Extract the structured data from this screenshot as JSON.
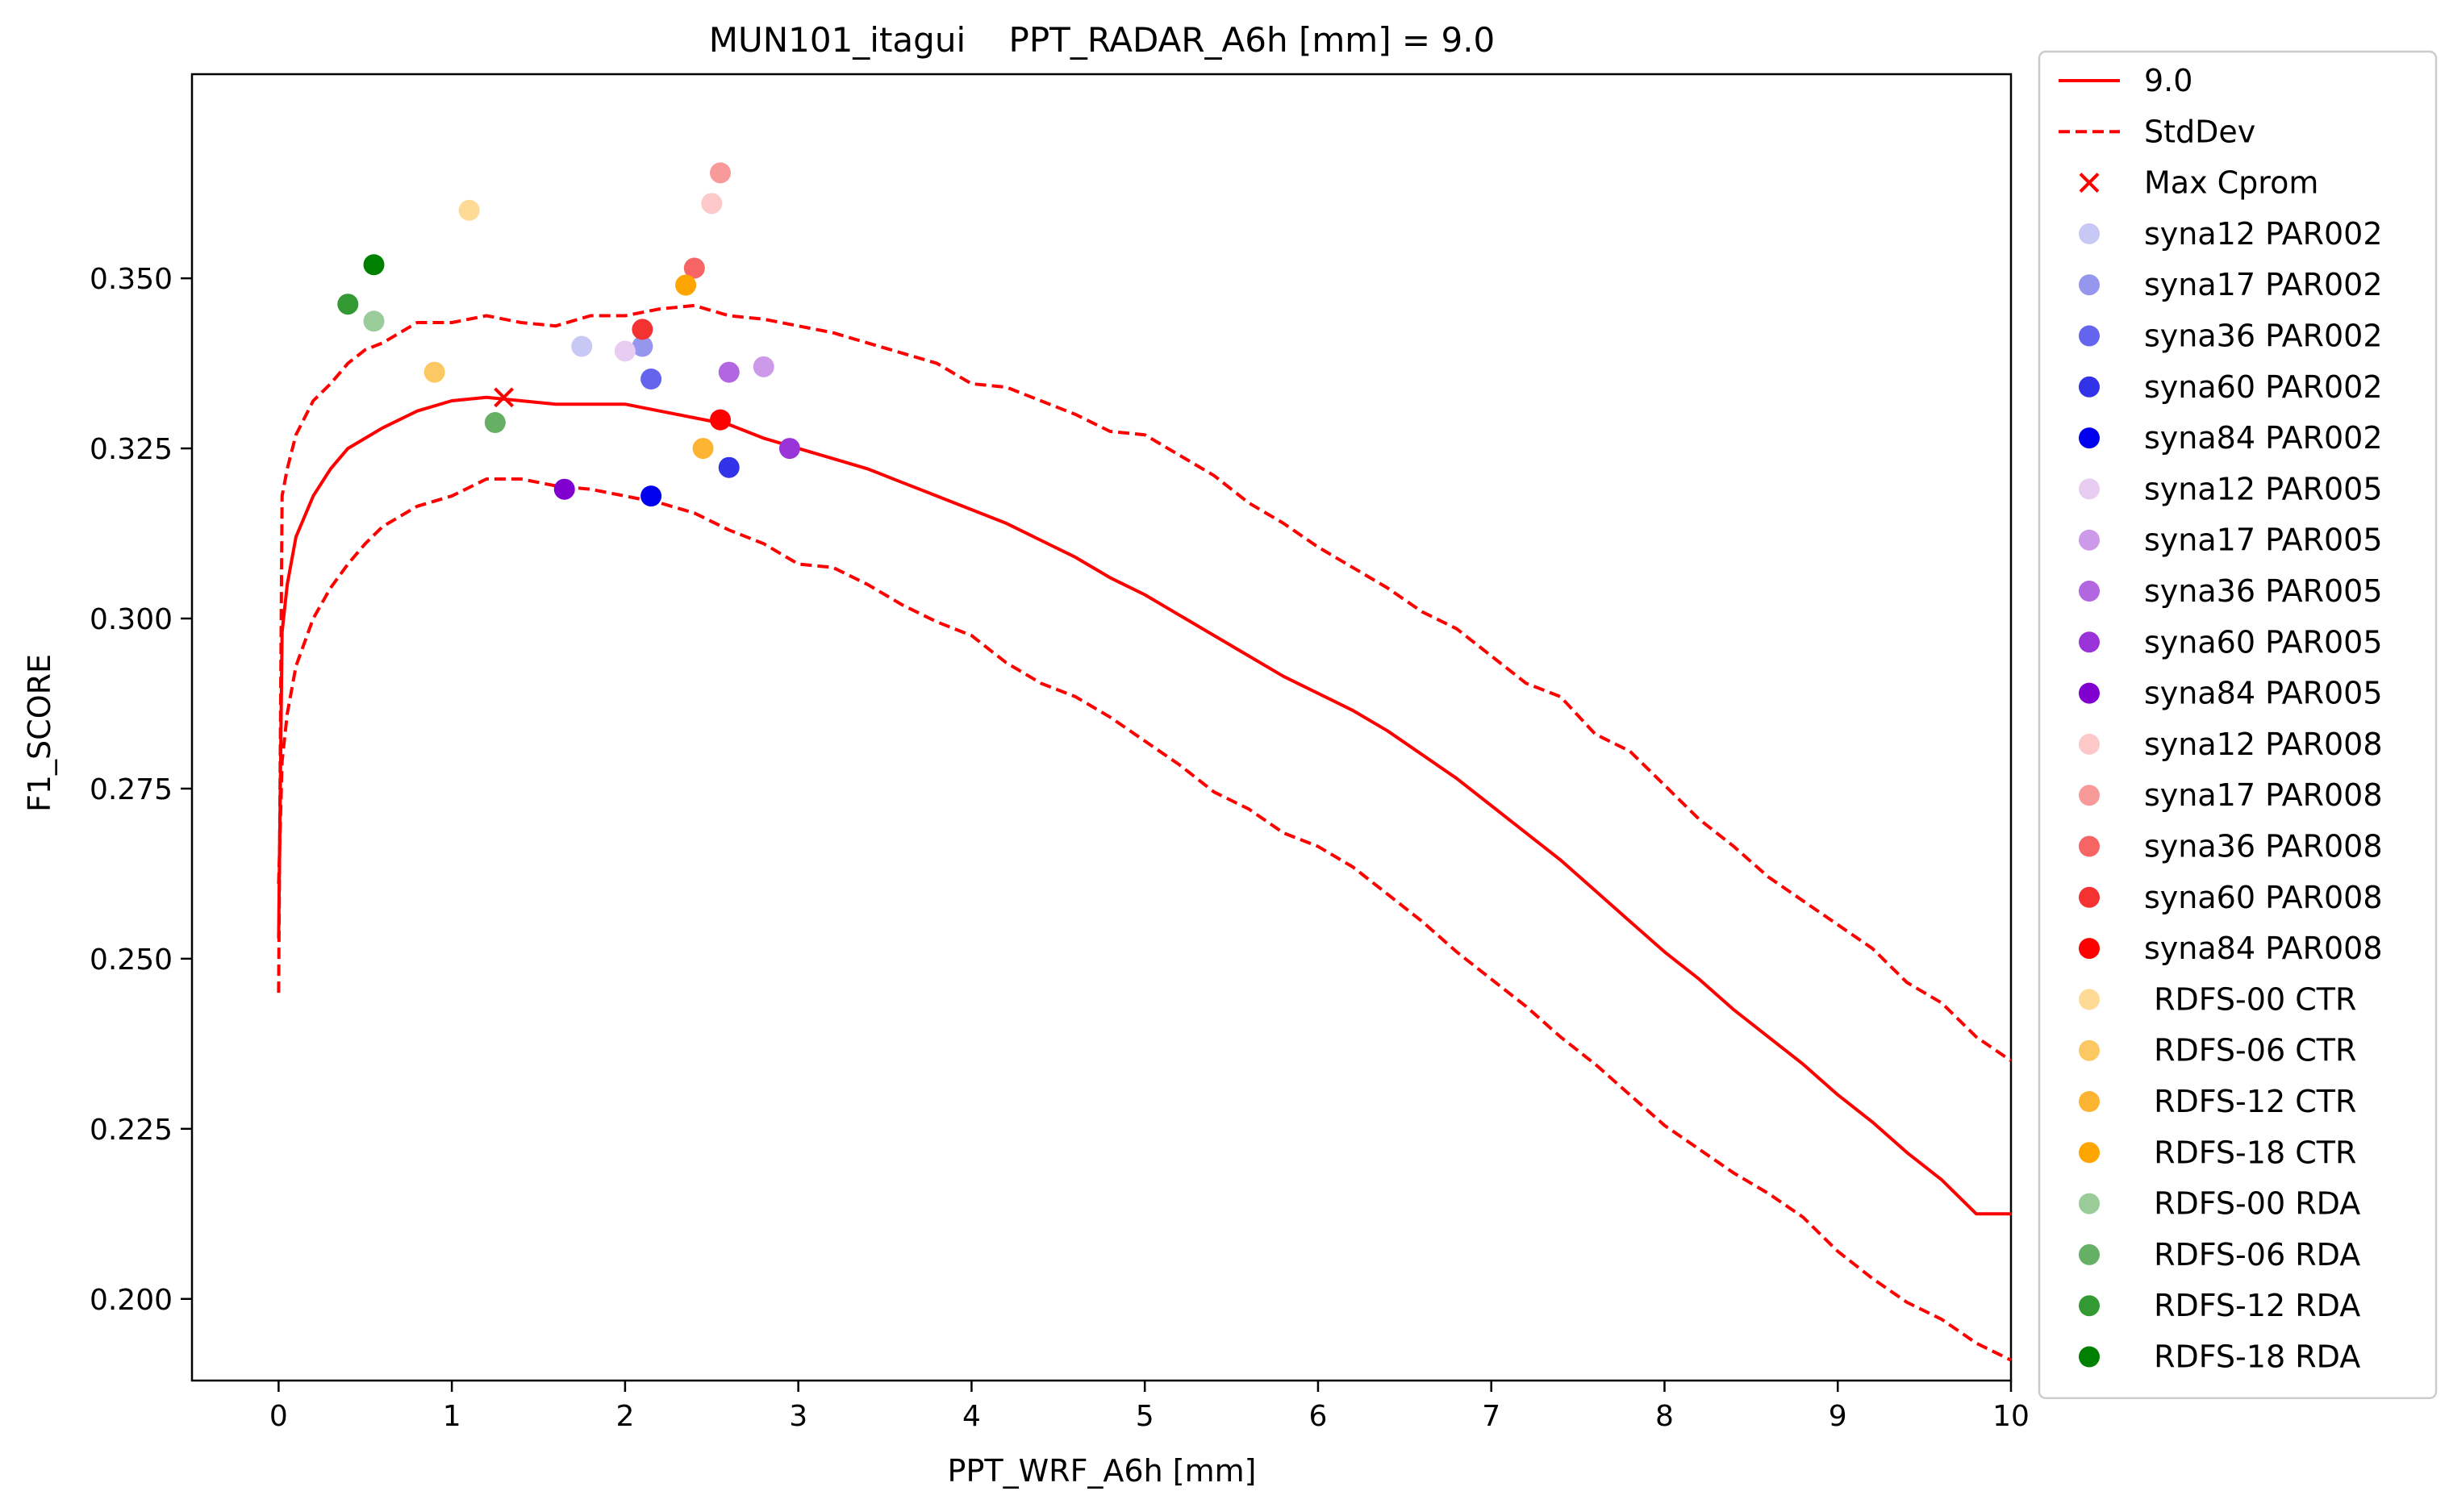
{
  "chart_data": {
    "type": "line",
    "title": "MUN101_itagui    PPT_RADAR_A6h [mm] = 9.0",
    "xlabel": "PPT_WRF_A6h [mm]",
    "ylabel": "F1_SCORE",
    "xlim": [
      -0.5,
      10
    ],
    "ylim": [
      0.188,
      0.38
    ],
    "x_ticks": [
      0,
      1,
      2,
      3,
      4,
      5,
      6,
      7,
      8,
      9,
      10
    ],
    "x_tick_labels": [
      "0",
      "1",
      "2",
      "3",
      "4",
      "5",
      "6",
      "7",
      "8",
      "9",
      "10"
    ],
    "y_ticks": [
      0.2,
      0.225,
      0.25,
      0.275,
      0.3,
      0.325,
      0.35
    ],
    "y_tick_labels": [
      "0.200",
      "0.225",
      "0.250",
      "0.275",
      "0.300",
      "0.325",
      "0.350"
    ],
    "grid": false,
    "legend_position": "outside-right",
    "series": [
      {
        "name": "9.0",
        "style": "solid",
        "color": "#ff0000",
        "x": [
          0,
          0.02,
          0.05,
          0.1,
          0.2,
          0.3,
          0.4,
          0.5,
          0.6,
          0.8,
          1.0,
          1.2,
          1.4,
          1.6,
          1.8,
          2.0,
          2.2,
          2.4,
          2.6,
          2.8,
          3.0,
          3.2,
          3.4,
          3.6,
          3.8,
          4.0,
          4.2,
          4.4,
          4.6,
          4.8,
          5.0,
          5.2,
          5.4,
          5.6,
          5.8,
          6.0,
          6.2,
          6.4,
          6.6,
          6.8,
          7.0,
          7.2,
          7.4,
          7.6,
          7.8,
          8.0,
          8.2,
          8.4,
          8.6,
          8.8,
          9.0,
          9.2,
          9.4,
          9.6,
          9.8,
          10.0
        ],
        "values": [
          0.253,
          0.298,
          0.305,
          0.312,
          0.318,
          0.322,
          0.325,
          0.3265,
          0.328,
          0.3305,
          0.332,
          0.3325,
          0.332,
          0.3315,
          0.3315,
          0.3315,
          0.3305,
          0.3295,
          0.3285,
          0.3265,
          0.325,
          0.3235,
          0.322,
          0.32,
          0.318,
          0.316,
          0.314,
          0.3115,
          0.309,
          0.306,
          0.3035,
          0.3005,
          0.2975,
          0.2945,
          0.2915,
          0.289,
          0.2865,
          0.2835,
          0.28,
          0.2765,
          0.2725,
          0.2685,
          0.2645,
          0.26,
          0.2555,
          0.251,
          0.247,
          0.2425,
          0.2385,
          0.2345,
          0.23,
          0.226,
          0.2215,
          0.2175,
          0.2125,
          0.2125
        ]
      },
      {
        "name": "StdDev",
        "style": "dashed",
        "color": "#ff0000",
        "x": [
          0,
          0.02,
          0.05,
          0.1,
          0.2,
          0.3,
          0.4,
          0.5,
          0.6,
          0.8,
          1.0,
          1.2,
          1.4,
          1.6,
          1.8,
          2.0,
          2.2,
          2.4,
          2.6,
          2.8,
          3.0,
          3.2,
          3.4,
          3.6,
          3.8,
          4.0,
          4.2,
          4.4,
          4.6,
          4.8,
          5.0,
          5.2,
          5.4,
          5.6,
          5.8,
          6.0,
          6.2,
          6.4,
          6.6,
          6.8,
          7.0,
          7.2,
          7.4,
          7.6,
          7.8,
          8.0,
          8.2,
          8.4,
          8.6,
          8.8,
          9.0,
          9.2,
          9.4,
          9.6,
          9.8,
          10.0
        ],
        "values": [
          0.245,
          0.318,
          0.322,
          0.327,
          0.332,
          0.3345,
          0.3375,
          0.3395,
          0.3405,
          0.3435,
          0.3435,
          0.3445,
          0.3435,
          0.343,
          0.3445,
          0.3445,
          0.3455,
          0.346,
          0.3445,
          0.344,
          0.343,
          0.342,
          0.3405,
          0.339,
          0.3375,
          0.3345,
          0.334,
          0.332,
          0.33,
          0.3275,
          0.327,
          0.324,
          0.321,
          0.317,
          0.314,
          0.3105,
          0.3075,
          0.3045,
          0.301,
          0.2985,
          0.2945,
          0.2905,
          0.2885,
          0.283,
          0.2805,
          0.2755,
          0.2705,
          0.2665,
          0.262,
          0.2585,
          0.255,
          0.2515,
          0.2465,
          0.2435,
          0.2385,
          0.235
        ]
      },
      {
        "name": "StdDev lower",
        "style": "dashed",
        "color": "#ff0000",
        "x": [
          0,
          0.02,
          0.05,
          0.1,
          0.2,
          0.3,
          0.4,
          0.5,
          0.6,
          0.8,
          1.0,
          1.2,
          1.4,
          1.6,
          1.8,
          2.0,
          2.2,
          2.4,
          2.6,
          2.8,
          3.0,
          3.2,
          3.4,
          3.6,
          3.8,
          4.0,
          4.2,
          4.4,
          4.6,
          4.8,
          5.0,
          5.2,
          5.4,
          5.6,
          5.8,
          6.0,
          6.2,
          6.4,
          6.6,
          6.8,
          7.0,
          7.2,
          7.4,
          7.6,
          7.8,
          8.0,
          8.2,
          8.4,
          8.6,
          8.8,
          9.0,
          9.2,
          9.4,
          9.6,
          9.8,
          10.0
        ],
        "values": [
          0.261,
          0.279,
          0.286,
          0.293,
          0.3,
          0.3045,
          0.308,
          0.311,
          0.3135,
          0.3165,
          0.318,
          0.3205,
          0.3205,
          0.3195,
          0.319,
          0.318,
          0.317,
          0.3155,
          0.313,
          0.311,
          0.308,
          0.3075,
          0.305,
          0.302,
          0.2995,
          0.2975,
          0.2935,
          0.2905,
          0.2885,
          0.2855,
          0.282,
          0.2785,
          0.2745,
          0.272,
          0.2685,
          0.2665,
          0.2635,
          0.2595,
          0.2555,
          0.251,
          0.247,
          0.243,
          0.2385,
          0.2345,
          0.23,
          0.2255,
          0.222,
          0.2185,
          0.2155,
          0.212,
          0.207,
          0.203,
          0.1995,
          0.197,
          0.1935,
          0.191
        ]
      }
    ],
    "max_point": {
      "name": "Max Cprom",
      "x": 1.3,
      "y": 0.3325,
      "color": "#ff0000",
      "marker": "x"
    },
    "points": [
      {
        "name": "syna12 PAR002",
        "x": 1.75,
        "y": 0.34,
        "color": "#c8c8f5"
      },
      {
        "name": "syna17 PAR002",
        "x": 2.1,
        "y": 0.34,
        "color": "#9696ee"
      },
      {
        "name": "syna36 PAR002",
        "x": 2.15,
        "y": 0.3352,
        "color": "#6464ee"
      },
      {
        "name": "syna60 PAR002",
        "x": 2.6,
        "y": 0.3222,
        "color": "#3232e8"
      },
      {
        "name": "syna84 PAR002",
        "x": 2.15,
        "y": 0.318,
        "color": "#0000ee"
      },
      {
        "name": "syna12 PAR005",
        "x": 2.0,
        "y": 0.3393,
        "color": "#e8ccf2"
      },
      {
        "name": "syna17 PAR005",
        "x": 2.8,
        "y": 0.337,
        "color": "#cc9ae8"
      },
      {
        "name": "syna36 PAR005",
        "x": 2.6,
        "y": 0.3362,
        "color": "#b266e0"
      },
      {
        "name": "syna60 PAR005",
        "x": 2.95,
        "y": 0.325,
        "color": "#9a33d8"
      },
      {
        "name": "syna84 PAR005",
        "x": 1.65,
        "y": 0.319,
        "color": "#8000d0"
      },
      {
        "name": "syna12 PAR008",
        "x": 2.5,
        "y": 0.361,
        "color": "#fcc8c8"
      },
      {
        "name": "syna17 PAR008",
        "x": 2.55,
        "y": 0.3655,
        "color": "#f99a9a"
      },
      {
        "name": "syna36 PAR008",
        "x": 2.4,
        "y": 0.3515,
        "color": "#f76464"
      },
      {
        "name": "syna60 PAR008",
        "x": 2.1,
        "y": 0.3425,
        "color": "#f53232"
      },
      {
        "name": "syna84 PAR008",
        "x": 2.55,
        "y": 0.3292,
        "color": "#ff0000"
      },
      {
        "name": "RDFS-00 CTR",
        "x": 1.1,
        "y": 0.36,
        "color": "#fddb96"
      },
      {
        "name": "RDFS-06 CTR",
        "x": 0.9,
        "y": 0.3362,
        "color": "#fcc864"
      },
      {
        "name": "RDFS-12 CTR",
        "x": 2.45,
        "y": 0.325,
        "color": "#fcb432"
      },
      {
        "name": "RDFS-18 CTR",
        "x": 2.35,
        "y": 0.349,
        "color": "#ffa500"
      },
      {
        "name": "RDFS-00 RDA",
        "x": 0.55,
        "y": 0.3437,
        "color": "#99cc99"
      },
      {
        "name": "RDFS-06 RDA",
        "x": 1.25,
        "y": 0.3288,
        "color": "#66b066"
      },
      {
        "name": "RDFS-12 RDA",
        "x": 0.4,
        "y": 0.3462,
        "color": "#339933"
      },
      {
        "name": "RDFS-18 RDA",
        "x": 0.55,
        "y": 0.352,
        "color": "#008000"
      }
    ],
    "legend": [
      {
        "label": "9.0",
        "type": "solid-line",
        "color": "#ff0000"
      },
      {
        "label": "StdDev",
        "type": "dashed-line",
        "color": "#ff0000"
      },
      {
        "label": "Max Cprom",
        "type": "x-marker",
        "color": "#ff0000"
      },
      {
        "label": "syna12 PAR002",
        "type": "dot",
        "color": "#c8c8f5"
      },
      {
        "label": "syna17 PAR002",
        "type": "dot",
        "color": "#9696ee"
      },
      {
        "label": "syna36 PAR002",
        "type": "dot",
        "color": "#6464ee"
      },
      {
        "label": "syna60 PAR002",
        "type": "dot",
        "color": "#3232e8"
      },
      {
        "label": "syna84 PAR002",
        "type": "dot",
        "color": "#0000ee"
      },
      {
        "label": "syna12 PAR005",
        "type": "dot",
        "color": "#e8ccf2"
      },
      {
        "label": "syna17 PAR005",
        "type": "dot",
        "color": "#cc9ae8"
      },
      {
        "label": "syna36 PAR005",
        "type": "dot",
        "color": "#b266e0"
      },
      {
        "label": "syna60 PAR005",
        "type": "dot",
        "color": "#9a33d8"
      },
      {
        "label": "syna84 PAR005",
        "type": "dot",
        "color": "#8000d0"
      },
      {
        "label": "syna12 PAR008",
        "type": "dot",
        "color": "#fcc8c8"
      },
      {
        "label": "syna17 PAR008",
        "type": "dot",
        "color": "#f99a9a"
      },
      {
        "label": "syna36 PAR008",
        "type": "dot",
        "color": "#f76464"
      },
      {
        "label": "syna60 PAR008",
        "type": "dot",
        "color": "#f53232"
      },
      {
        "label": "syna84 PAR008",
        "type": "dot",
        "color": "#ff0000"
      },
      {
        "label": " RDFS-00 CTR",
        "type": "dot",
        "color": "#fddb96"
      },
      {
        "label": " RDFS-06 CTR",
        "type": "dot",
        "color": "#fcc864"
      },
      {
        "label": " RDFS-12 CTR",
        "type": "dot",
        "color": "#fcb432"
      },
      {
        "label": " RDFS-18 CTR",
        "type": "dot",
        "color": "#ffa500"
      },
      {
        "label": " RDFS-00 RDA",
        "type": "dot",
        "color": "#99cc99"
      },
      {
        "label": " RDFS-06 RDA",
        "type": "dot",
        "color": "#66b066"
      },
      {
        "label": " RDFS-12 RDA",
        "type": "dot",
        "color": "#339933"
      },
      {
        "label": " RDFS-18 RDA",
        "type": "dot",
        "color": "#008000"
      }
    ]
  }
}
